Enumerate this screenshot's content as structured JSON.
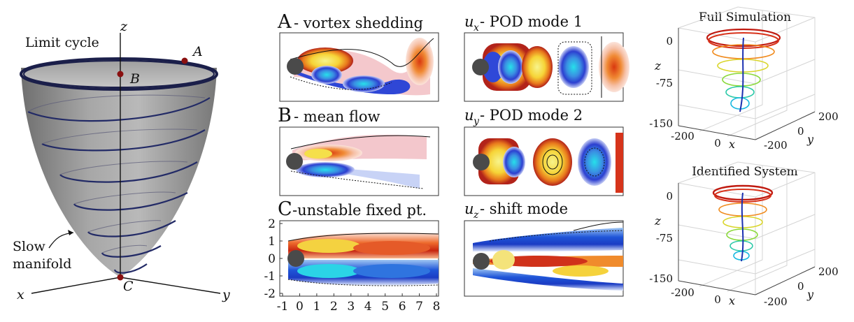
{
  "paraboloid": {
    "limit_cycle_label": "Limit cycle",
    "slow_label_1": "Slow",
    "slow_label_2": "manifold",
    "axis_x": "x",
    "axis_y": "y",
    "axis_z": "z",
    "point_a": "A",
    "point_b": "B",
    "point_c": "C"
  },
  "flow_panels": {
    "a_letter": "A",
    "a_title": "- vortex shedding",
    "b_letter": "B",
    "b_title": "- mean flow",
    "c_letter": "C",
    "c_title": "-unstable fixed pt.",
    "c_y_ticks": [
      "2",
      "1",
      "0",
      "-1",
      "-2"
    ],
    "c_x_ticks": [
      "-1",
      "0",
      "1",
      "2",
      "3",
      "4",
      "5",
      "6",
      "7",
      "8"
    ]
  },
  "modes": {
    "ux_sym": "u",
    "ux_sub": "x",
    "ux_title": " - POD mode 1",
    "uy_sym": "u",
    "uy_sub": "y",
    "uy_title": " - POD mode 2",
    "uz_sym": "u",
    "uz_sub": "z",
    "uz_title": " - shift mode"
  },
  "full_sim": {
    "title": "Full Simulation",
    "z_label": "z",
    "z_ticks": [
      "0",
      "-75",
      "-150"
    ],
    "x_ticks": [
      "-200",
      "0"
    ],
    "x_label": "x",
    "y_ticks": [
      "200",
      "0",
      "-200"
    ],
    "y_label": "y"
  },
  "identified": {
    "title": "Identified System",
    "z_label": "z",
    "z_ticks": [
      "0",
      "-75",
      "-150"
    ],
    "x_ticks": [
      "-200",
      "0"
    ],
    "x_label": "x",
    "y_ticks": [
      "200",
      "0",
      "-200"
    ],
    "y_label": "y"
  }
}
